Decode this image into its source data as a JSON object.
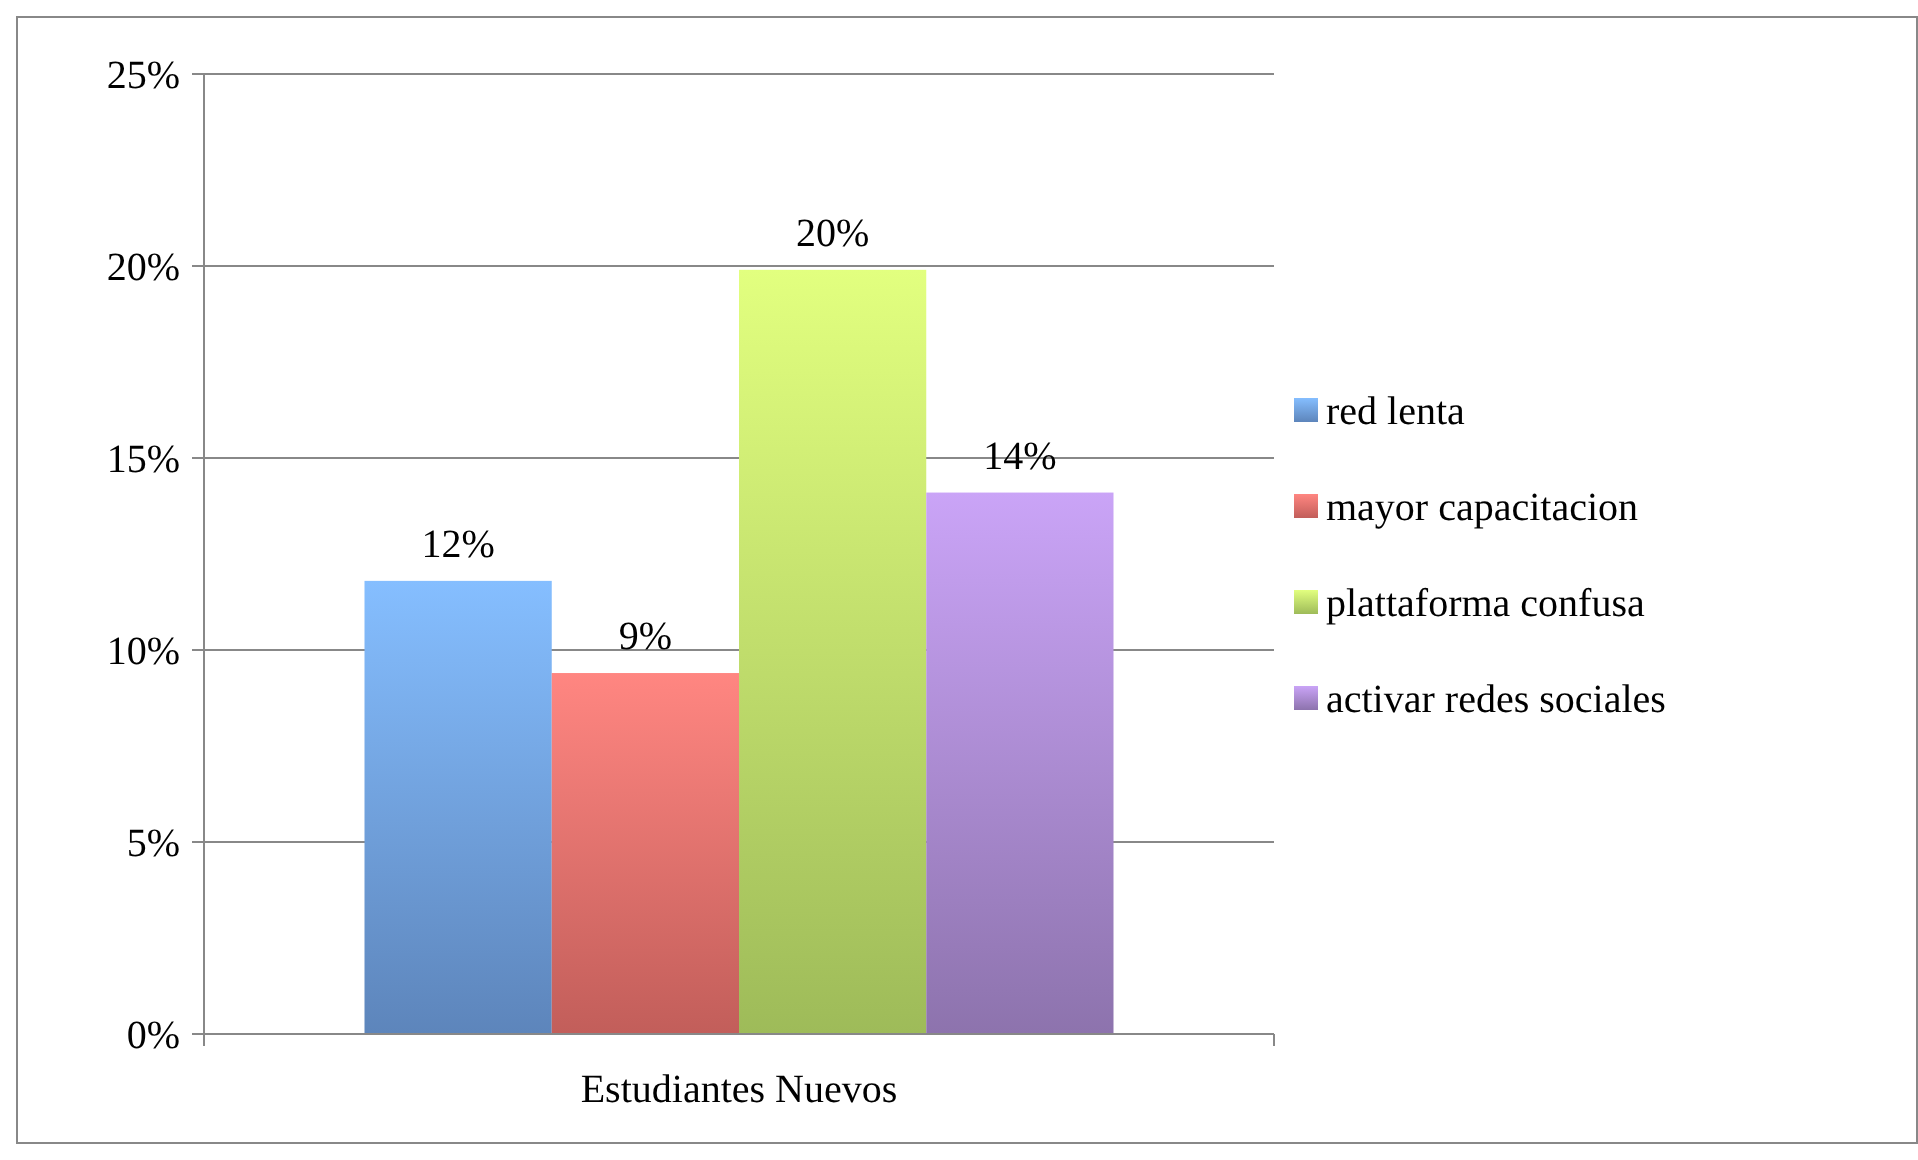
{
  "chart_data": {
    "type": "bar",
    "categories": [
      "Estudiantes Nuevos"
    ],
    "series": [
      {
        "name": "red lenta",
        "color": "#6f9fe0",
        "values": [
          11.8
        ],
        "value_labels": [
          "12%"
        ]
      },
      {
        "name": "mayor capacitacion",
        "color": "#e8706c",
        "values": [
          9.4
        ],
        "value_labels": [
          "9%"
        ]
      },
      {
        "name": "plattaforma confusa",
        "color": "#bde06a",
        "values": [
          19.9
        ],
        "value_labels": [
          "20%"
        ]
      },
      {
        "name": "activar redes sociales",
        "color": "#a989cf",
        "values": [
          14.1
        ],
        "value_labels": [
          "14%"
        ]
      }
    ],
    "ylim": [
      0,
      25
    ],
    "yticks": [
      {
        "value": 0,
        "label": "0%"
      },
      {
        "value": 5,
        "label": "5%"
      },
      {
        "value": 10,
        "label": "10%"
      },
      {
        "value": 15,
        "label": "15%"
      },
      {
        "value": 20,
        "label": "20%"
      },
      {
        "value": 25,
        "label": "25%"
      }
    ],
    "grid": "y",
    "legend": "right"
  }
}
